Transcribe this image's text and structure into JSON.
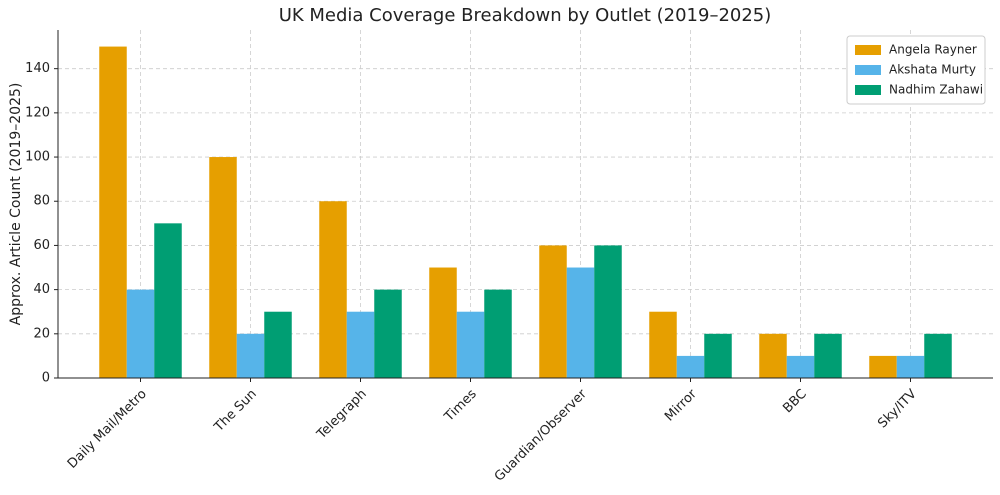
{
  "chart_data": {
    "type": "bar",
    "title": "UK Media Coverage Breakdown by Outlet (2019–2025)",
    "y_label": "Approx. Article Count (2019–2025)",
    "categories": [
      "Daily Mail/Metro",
      "The Sun",
      "Telegraph",
      "Times",
      "Guardian/Observer",
      "Mirror",
      "BBC",
      "Sky/ITV"
    ],
    "series": [
      {
        "name": "Angela Rayner",
        "color": "#E69F00",
        "values": [
          150,
          100,
          80,
          50,
          60,
          30,
          20,
          10
        ]
      },
      {
        "name": "Akshata Murty",
        "color": "#56B4E9",
        "values": [
          40,
          20,
          30,
          30,
          50,
          10,
          10,
          10
        ]
      },
      {
        "name": "Nadhim Zahawi",
        "color": "#009E73",
        "values": [
          70,
          30,
          40,
          40,
          60,
          20,
          20,
          20
        ]
      }
    ],
    "ylim": [
      0,
      157.5
    ],
    "yticks": [
      0,
      20,
      40,
      60,
      80,
      100,
      120,
      140
    ],
    "grid": true,
    "legend": "upper-right"
  }
}
